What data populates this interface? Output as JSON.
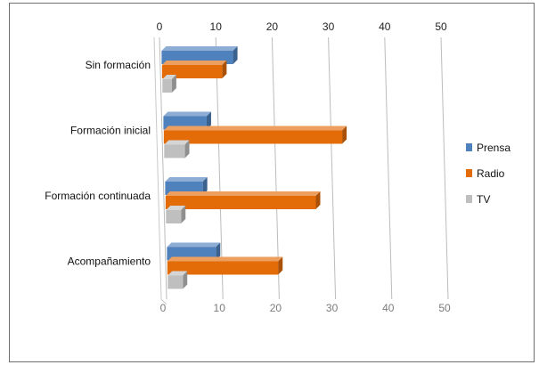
{
  "chart_data": {
    "type": "bar",
    "orientation": "horizontal",
    "style": "3d",
    "categories": [
      "Sin formación",
      "Formación inicial",
      "Formación continuada",
      "Acompañamiento"
    ],
    "series": [
      {
        "name": "Prensa",
        "color": "#4f81bd",
        "values": [
          13,
          8,
          7,
          9
        ]
      },
      {
        "name": "Radio",
        "color": "#e36c09",
        "values": [
          11,
          32,
          27,
          20
        ]
      },
      {
        "name": "TV",
        "color": "#bfbfbf",
        "values": [
          2,
          4,
          3,
          3
        ]
      }
    ],
    "xlim": [
      0,
      50
    ],
    "xticks": [
      "0",
      "10",
      "20",
      "30",
      "40",
      "50"
    ],
    "x_axis_position": "top",
    "grid": true,
    "legend_position": "right",
    "title": "",
    "xlabel": "",
    "ylabel": ""
  }
}
